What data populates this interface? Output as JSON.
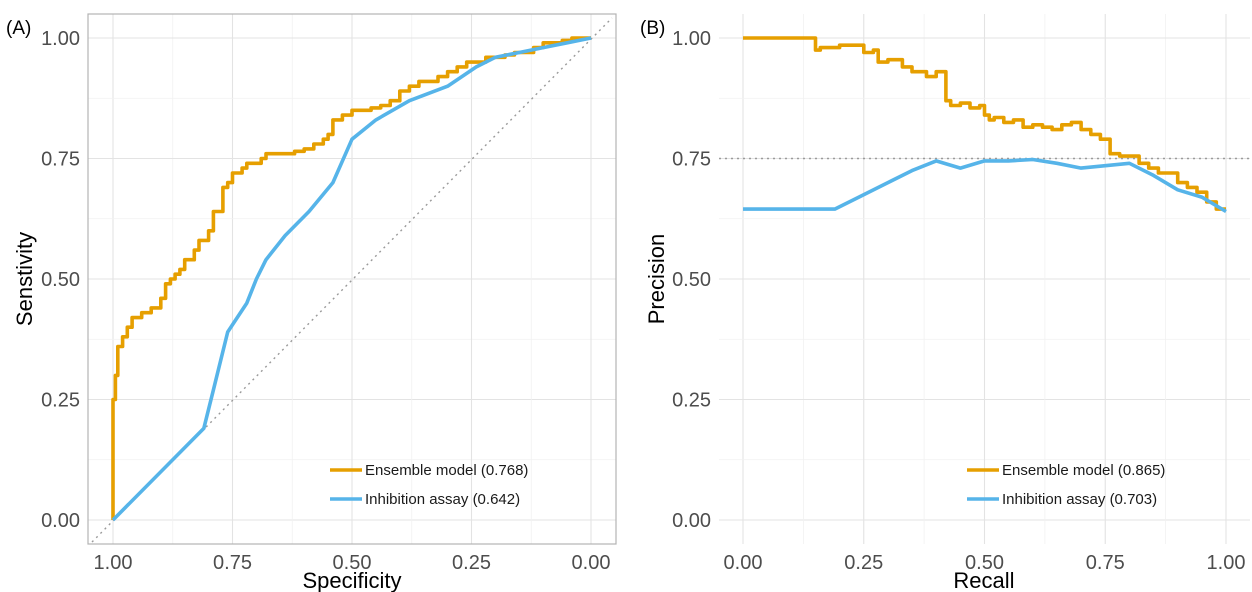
{
  "colors": {
    "ensemble": "#E69F00",
    "inhibition": "#56B4E9",
    "reference": "#9a9a9a"
  },
  "chart_data": [
    {
      "panel_label": "(A)",
      "type": "line",
      "xlabel": "Specificity",
      "ylabel": "Senstivity",
      "xlim": [
        1.0,
        0.0
      ],
      "ylim": [
        0.0,
        1.0
      ],
      "x_reversed": true,
      "xticks": [
        "1.00",
        "0.75",
        "0.50",
        "0.25",
        "0.00"
      ],
      "yticks": [
        "0.00",
        "0.25",
        "0.50",
        "0.75",
        "1.00"
      ],
      "grid": true,
      "legend_position": "bottom-right",
      "reference_line": "diagonal",
      "series": [
        {
          "name": "Ensemble model (0.768)",
          "color": "#E69F00",
          "step": true,
          "x": [
            1.0,
            1.0,
            0.995,
            0.99,
            0.98,
            0.97,
            0.96,
            0.95,
            0.94,
            0.92,
            0.9,
            0.89,
            0.88,
            0.87,
            0.86,
            0.85,
            0.83,
            0.82,
            0.8,
            0.79,
            0.78,
            0.77,
            0.76,
            0.75,
            0.74,
            0.73,
            0.72,
            0.7,
            0.69,
            0.68,
            0.66,
            0.64,
            0.62,
            0.6,
            0.58,
            0.56,
            0.55,
            0.54,
            0.53,
            0.52,
            0.51,
            0.5,
            0.48,
            0.46,
            0.44,
            0.42,
            0.4,
            0.38,
            0.36,
            0.34,
            0.32,
            0.3,
            0.28,
            0.26,
            0.24,
            0.22,
            0.2,
            0.18,
            0.16,
            0.14,
            0.12,
            0.1,
            0.08,
            0.06,
            0.04,
            0.02,
            0.0
          ],
          "y": [
            0.0,
            0.15,
            0.25,
            0.3,
            0.36,
            0.38,
            0.4,
            0.42,
            0.42,
            0.43,
            0.44,
            0.46,
            0.49,
            0.5,
            0.51,
            0.52,
            0.54,
            0.56,
            0.58,
            0.6,
            0.64,
            0.64,
            0.69,
            0.7,
            0.72,
            0.72,
            0.73,
            0.74,
            0.74,
            0.75,
            0.76,
            0.76,
            0.76,
            0.765,
            0.77,
            0.78,
            0.79,
            0.8,
            0.83,
            0.83,
            0.84,
            0.84,
            0.85,
            0.85,
            0.855,
            0.86,
            0.87,
            0.89,
            0.9,
            0.91,
            0.91,
            0.92,
            0.93,
            0.94,
            0.95,
            0.95,
            0.96,
            0.96,
            0.965,
            0.97,
            0.97,
            0.98,
            0.99,
            0.99,
            0.995,
            1.0,
            1.0
          ]
        },
        {
          "name": "Inhibition assay (0.642)",
          "color": "#56B4E9",
          "step": false,
          "x": [
            1.0,
            0.81,
            0.79,
            0.76,
            0.72,
            0.7,
            0.68,
            0.64,
            0.59,
            0.54,
            0.5,
            0.45,
            0.38,
            0.3,
            0.24,
            0.2,
            0.15,
            0.1,
            0.05,
            0.0
          ],
          "y": [
            0.0,
            0.19,
            0.27,
            0.39,
            0.45,
            0.5,
            0.54,
            0.59,
            0.64,
            0.7,
            0.79,
            0.83,
            0.87,
            0.9,
            0.94,
            0.96,
            0.97,
            0.98,
            0.99,
            1.0
          ]
        }
      ]
    },
    {
      "panel_label": "(B)",
      "type": "line",
      "xlabel": "Recall",
      "ylabel": "Precision",
      "xlim": [
        0.0,
        1.0
      ],
      "ylim": [
        0.0,
        1.0
      ],
      "x_reversed": false,
      "xticks": [
        "0.00",
        "0.25",
        "0.50",
        "0.75",
        "1.00"
      ],
      "yticks": [
        "0.00",
        "0.25",
        "0.50",
        "0.75",
        "1.00"
      ],
      "grid": true,
      "legend_position": "bottom-right",
      "reference_line": "horizontal",
      "reference_y": 0.75,
      "series": [
        {
          "name": "Ensemble model (0.865)",
          "color": "#E69F00",
          "step": true,
          "x": [
            0.0,
            0.15,
            0.16,
            0.2,
            0.25,
            0.27,
            0.28,
            0.3,
            0.33,
            0.35,
            0.37,
            0.38,
            0.4,
            0.42,
            0.43,
            0.45,
            0.47,
            0.49,
            0.5,
            0.51,
            0.52,
            0.54,
            0.56,
            0.58,
            0.6,
            0.62,
            0.64,
            0.66,
            0.68,
            0.7,
            0.72,
            0.74,
            0.76,
            0.78,
            0.8,
            0.82,
            0.84,
            0.86,
            0.88,
            0.9,
            0.92,
            0.94,
            0.96,
            0.98,
            1.0
          ],
          "y": [
            1.0,
            1.0,
            0.975,
            0.98,
            0.985,
            0.97,
            0.975,
            0.95,
            0.955,
            0.94,
            0.93,
            0.93,
            0.92,
            0.93,
            0.87,
            0.86,
            0.865,
            0.855,
            0.86,
            0.84,
            0.83,
            0.835,
            0.825,
            0.83,
            0.815,
            0.82,
            0.815,
            0.81,
            0.82,
            0.825,
            0.81,
            0.8,
            0.79,
            0.76,
            0.755,
            0.755,
            0.74,
            0.73,
            0.72,
            0.72,
            0.7,
            0.69,
            0.68,
            0.66,
            0.645
          ]
        },
        {
          "name": "Inhibition assay (0.703)",
          "color": "#56B4E9",
          "step": false,
          "x": [
            0.0,
            0.19,
            0.24,
            0.3,
            0.35,
            0.4,
            0.45,
            0.5,
            0.55,
            0.6,
            0.65,
            0.7,
            0.75,
            0.8,
            0.85,
            0.9,
            0.95,
            1.0
          ],
          "y": [
            0.645,
            0.645,
            0.67,
            0.7,
            0.725,
            0.745,
            0.73,
            0.745,
            0.745,
            0.748,
            0.74,
            0.73,
            0.735,
            0.74,
            0.715,
            0.685,
            0.67,
            0.64
          ]
        }
      ]
    }
  ]
}
